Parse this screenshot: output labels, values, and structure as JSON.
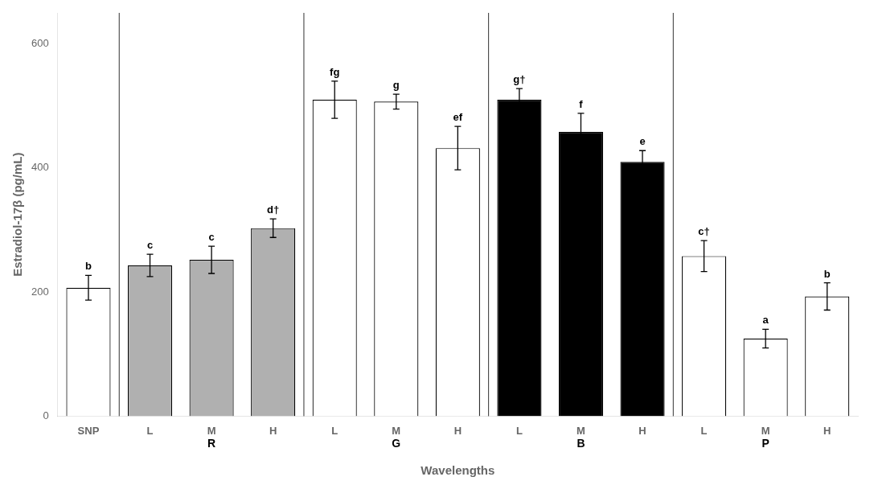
{
  "chart_data": {
    "type": "bar",
    "categories": [
      "SNP",
      "L",
      "M",
      "H",
      "L",
      "M",
      "H",
      "L",
      "M",
      "H",
      "L",
      "M",
      "H"
    ],
    "values": [
      207,
      243,
      252,
      303,
      510,
      507,
      432,
      510,
      458,
      410,
      258,
      125,
      193
    ],
    "errors": [
      20,
      18,
      22,
      15,
      30,
      12,
      35,
      18,
      30,
      18,
      25,
      15,
      22
    ],
    "annotations": [
      "b",
      "c",
      "c",
      "d†",
      "fg",
      "g",
      "ef",
      "g†",
      "f",
      "e",
      "c†",
      "a",
      "b"
    ],
    "groups": [
      null,
      "R",
      "R",
      "R",
      "G",
      "G",
      "G",
      "B",
      "B",
      "B",
      "P",
      "P",
      "P"
    ],
    "colors": [
      "white",
      "#b0b0b0",
      "#b0b0b0",
      "#b0b0b0",
      "white",
      "white",
      "white",
      "black",
      "black",
      "black",
      "white",
      "white",
      "white"
    ],
    "xlabel": "Wavelengths",
    "ylabel": "Estradiol-17β (pg/mL)",
    "ylim": [
      0,
      650
    ],
    "yticks": [
      0,
      200,
      400,
      600
    ],
    "grid": false
  }
}
